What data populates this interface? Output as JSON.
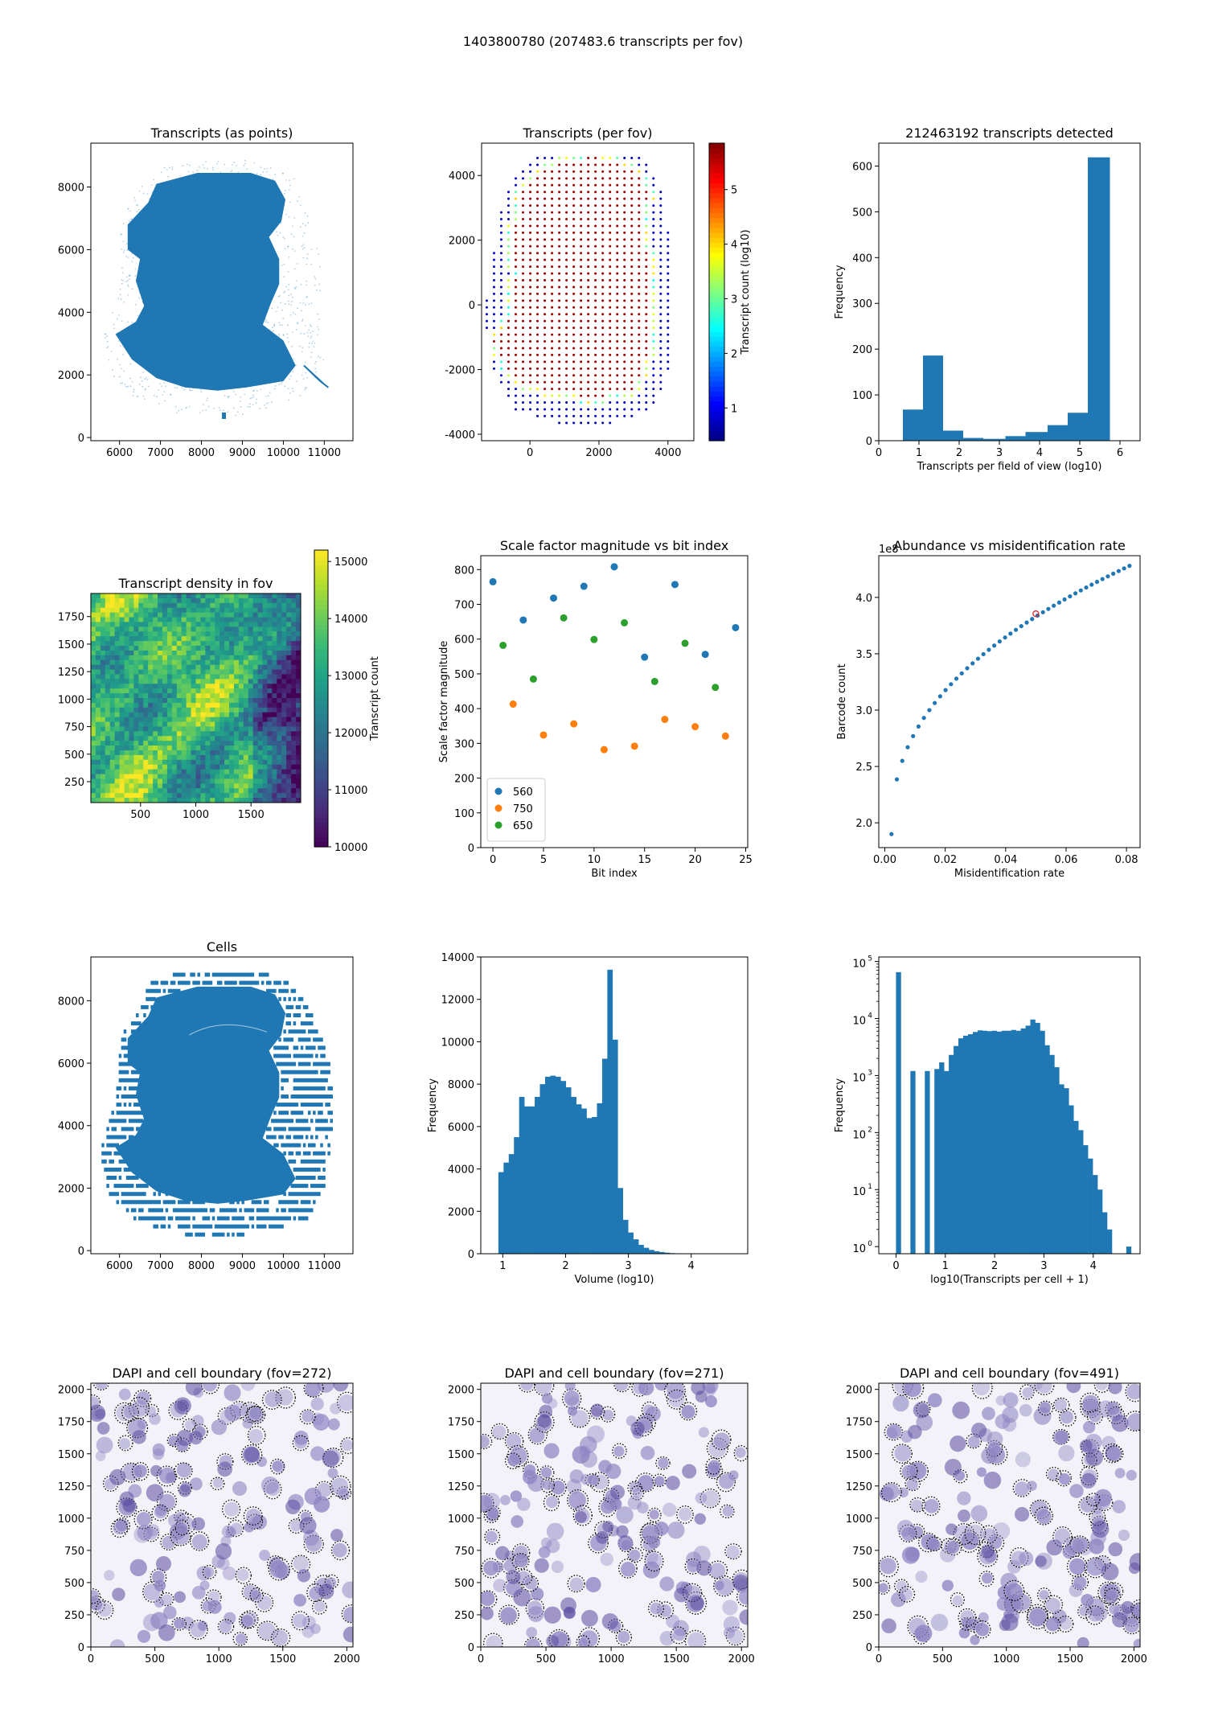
{
  "suptitle": "1403800780 (207483.6 transcripts per fov)",
  "colors": {
    "blue": "#1f77b4",
    "orange": "#ff7f0e",
    "green": "#2ca02c",
    "red": "#d62728"
  },
  "chart_data": [
    {
      "id": "p1",
      "type": "scatter",
      "title": "Transcripts (as points)",
      "xlim": [
        5300,
        11700
      ],
      "ylim": [
        -100,
        9400
      ],
      "xticks": [
        6000,
        7000,
        8000,
        9000,
        10000,
        11000
      ],
      "yticks": [
        0,
        2000,
        4000,
        6000,
        8000
      ],
      "description_points": "dense point cloud of brain-section outline",
      "outline": [
        [
          6900,
          8100
        ],
        [
          7900,
          8450
        ],
        [
          9200,
          8450
        ],
        [
          9800,
          8200
        ],
        [
          10050,
          7600
        ],
        [
          9950,
          6900
        ],
        [
          9650,
          6400
        ],
        [
          9900,
          5700
        ],
        [
          9900,
          4900
        ],
        [
          9700,
          4300
        ],
        [
          9500,
          3600
        ],
        [
          10000,
          3100
        ],
        [
          10300,
          2300
        ],
        [
          10000,
          1800
        ],
        [
          9100,
          1600
        ],
        [
          8400,
          1500
        ],
        [
          7600,
          1600
        ],
        [
          6900,
          1900
        ],
        [
          6300,
          2500
        ],
        [
          5900,
          3300
        ],
        [
          6400,
          3700
        ],
        [
          6600,
          4200
        ],
        [
          6400,
          5000
        ],
        [
          6500,
          5700
        ],
        [
          6200,
          6000
        ],
        [
          6200,
          6800
        ],
        [
          6700,
          7500
        ]
      ],
      "halo": [
        [
          6700,
          8500
        ],
        [
          8000,
          8900
        ],
        [
          9300,
          8900
        ],
        [
          10300,
          8400
        ],
        [
          10500,
          7400
        ],
        [
          10900,
          6000
        ],
        [
          10900,
          4000
        ],
        [
          11000,
          2400
        ],
        [
          10500,
          1300
        ],
        [
          9000,
          700
        ],
        [
          7400,
          700
        ],
        [
          6300,
          1300
        ],
        [
          5700,
          2200
        ],
        [
          5600,
          3500
        ],
        [
          6000,
          5200
        ],
        [
          6000,
          6800
        ]
      ],
      "tail": [
        [
          10500,
          2300
        ],
        [
          11000,
          1700
        ],
        [
          11100,
          1600
        ],
        [
          10900,
          1800
        ]
      ]
    },
    {
      "id": "p2",
      "type": "scatter",
      "title": "Transcripts (per fov)",
      "xlim": [
        -1400,
        4750
      ],
      "ylim": [
        -4200,
        5000
      ],
      "xticks": [
        0,
        2000,
        4000
      ],
      "yticks": [
        -4000,
        -2000,
        0,
        2000,
        4000
      ],
      "colorbar": {
        "label": "Transcript count (log10)",
        "ticks": [
          1,
          2,
          3,
          4,
          5
        ],
        "range": [
          0.4,
          5.85
        ],
        "colormap": "jet"
      },
      "grid_step": 210,
      "tissue_outline": [
        [
          300,
          4200
        ],
        [
          1800,
          4600
        ],
        [
          3100,
          4200
        ],
        [
          3400,
          3500
        ],
        [
          3300,
          2300
        ],
        [
          3450,
          1000
        ],
        [
          3400,
          -300
        ],
        [
          3500,
          -1400
        ],
        [
          3000,
          -2600
        ],
        [
          2000,
          -2900
        ],
        [
          500,
          -2700
        ],
        [
          -500,
          -2300
        ],
        [
          -1100,
          -1200
        ],
        [
          -600,
          -300
        ],
        [
          -400,
          1000
        ],
        [
          -500,
          2200
        ],
        [
          -200,
          3500
        ]
      ],
      "grid_outline": [
        [
          200,
          4650
        ],
        [
          1800,
          5000
        ],
        [
          3300,
          4600
        ],
        [
          3800,
          3600
        ],
        [
          4050,
          2000
        ],
        [
          4200,
          0
        ],
        [
          4100,
          -1800
        ],
        [
          3600,
          -3200
        ],
        [
          2300,
          -3700
        ],
        [
          800,
          -3700
        ],
        [
          -400,
          -3300
        ],
        [
          -1200,
          -1800
        ],
        [
          -1300,
          0
        ],
        [
          -1000,
          2000
        ],
        [
          -700,
          3600
        ]
      ]
    },
    {
      "id": "p3",
      "type": "bar",
      "title": "212463192 transcripts detected",
      "xlabel": "Transcripts per field of view (log10)",
      "ylabel": "Frequency",
      "xlim": [
        0,
        6.5
      ],
      "ylim": [
        0,
        650
      ],
      "xticks": [
        0,
        1,
        2,
        3,
        4,
        5,
        6
      ],
      "yticks": [
        0,
        100,
        200,
        300,
        400,
        500,
        600
      ],
      "bin_edges": [
        0.6,
        1.1,
        1.6,
        2.1,
        2.6,
        3.15,
        3.65,
        4.2,
        4.7,
        5.2,
        5.75
      ],
      "values": [
        68,
        186,
        22,
        6,
        4,
        10,
        19,
        34,
        61,
        619
      ]
    },
    {
      "id": "p4",
      "type": "heatmap",
      "title": "Transcript density in fov",
      "xlim": [
        50,
        1950
      ],
      "ylim": [
        60,
        1960
      ],
      "xticks": [
        500,
        1000,
        1500
      ],
      "yticks": [
        250,
        500,
        750,
        1000,
        1250,
        1500,
        1750
      ],
      "colorbar": {
        "label": "Transcript count",
        "ticks": [
          10000,
          11000,
          12000,
          13000,
          14000,
          15000
        ],
        "range": [
          10000,
          15200
        ],
        "colormap": "viridis"
      }
    },
    {
      "id": "p5",
      "type": "scatter",
      "title": "Scale factor magnitude vs bit index",
      "xlabel": "Bit index",
      "ylabel": "Scale factor magnitude",
      "xlim": [
        -1.2,
        25.2
      ],
      "ylim": [
        0,
        840
      ],
      "xticks": [
        0,
        5,
        10,
        15,
        20,
        25
      ],
      "yticks": [
        0,
        100,
        200,
        300,
        400,
        500,
        600,
        700,
        800
      ],
      "legend_position": "lower-left",
      "series": [
        {
          "name": "560",
          "x": [
            0,
            3,
            6,
            9,
            12,
            15,
            18,
            21,
            24
          ],
          "y": [
            765,
            655,
            718,
            752,
            808,
            548,
            757,
            556,
            633
          ]
        },
        {
          "name": "750",
          "x": [
            2,
            5,
            8,
            11,
            14,
            17,
            20,
            23
          ],
          "y": [
            413,
            324,
            356,
            282,
            292,
            369,
            348,
            321
          ]
        },
        {
          "name": "650",
          "x": [
            1,
            4,
            7,
            10,
            13,
            16,
            19,
            22
          ],
          "y": [
            582,
            485,
            661,
            599,
            647,
            478,
            588,
            461
          ]
        }
      ]
    },
    {
      "id": "p6",
      "type": "scatter",
      "title": "Abundance vs misidentification rate",
      "xlabel": "Misidentification rate",
      "ylabel": "Barcode count",
      "ylabel_scale": "1e8",
      "xlim": [
        -0.002,
        0.0845
      ],
      "ylim": [
        1.78,
        4.37
      ],
      "xticks": [
        0.0,
        0.02,
        0.04,
        0.06,
        0.08
      ],
      "yticks": [
        2.0,
        2.5,
        3.0,
        3.5,
        4.0
      ],
      "curve_start": 0.0022,
      "curve_end": 0.081,
      "curve_points": 45,
      "curve_model": "y = 1.9 + 2.38 * ((x - 0.0022)/0.0788)^0.42",
      "highlight": {
        "x": 0.05,
        "y": 3.855
      }
    },
    {
      "id": "p7",
      "type": "scatter",
      "title": "Cells",
      "xlim": [
        5300,
        11700
      ],
      "ylim": [
        -100,
        9400
      ],
      "xticks": [
        6000,
        7000,
        8000,
        9000,
        10000,
        11000
      ],
      "yticks": [
        0,
        2000,
        4000,
        6000,
        8000
      ]
    },
    {
      "id": "p8",
      "type": "bar",
      "title": "",
      "xlabel": "Volume (log10)",
      "ylabel": "Frequency",
      "xlim": [
        0.65,
        4.9
      ],
      "ylim": [
        0,
        14000
      ],
      "xticks": [
        1,
        2,
        3,
        4
      ],
      "yticks": [
        0,
        2000,
        4000,
        6000,
        8000,
        10000,
        12000,
        14000
      ],
      "bin_start": 0.93,
      "bin_width": 0.0826,
      "values": [
        3850,
        4300,
        4700,
        5500,
        7400,
        6950,
        6950,
        7400,
        8000,
        8350,
        8400,
        8350,
        8150,
        7850,
        7400,
        7050,
        6850,
        6400,
        6450,
        7100,
        9200,
        13400,
        10100,
        3100,
        1600,
        1000,
        680,
        420,
        280,
        180,
        120,
        80,
        50,
        30,
        20,
        12,
        8,
        5,
        3,
        2,
        1,
        1,
        1,
        1,
        1
      ]
    },
    {
      "id": "p9",
      "type": "bar",
      "title": "",
      "xlabel": "log10(Transcripts per cell + 1)",
      "ylabel": "Frequency",
      "yscale": "log",
      "xlim": [
        -0.35,
        4.95
      ],
      "ylim": [
        0.75,
        120000
      ],
      "xticks": [
        0,
        1,
        2,
        3,
        4
      ],
      "yticks": [
        1,
        10,
        100,
        1000,
        10000,
        100000
      ],
      "ytick_labels": [
        "10",
        "10",
        "10",
        "10",
        "10",
        "10"
      ],
      "ytick_exponents": [
        "0",
        "1",
        "2",
        "3",
        "4",
        "5"
      ],
      "bin_start": 0,
      "bin_width": 0.0973,
      "values": [
        65000,
        0,
        0,
        1200,
        0,
        0,
        1200,
        0,
        1300,
        1700,
        1200,
        2300,
        3300,
        4500,
        5000,
        5300,
        5800,
        6200,
        6100,
        6000,
        6100,
        5900,
        6100,
        6100,
        6300,
        6100,
        6700,
        7500,
        9600,
        8400,
        6100,
        3400,
        2300,
        1400,
        700,
        600,
        300,
        160,
        110,
        60,
        35,
        18,
        10,
        4,
        2,
        0,
        0,
        0,
        1
      ]
    },
    {
      "id": "p10",
      "type": "image",
      "title": "DAPI and cell boundary (fov=272)",
      "xlim": [
        0,
        2048
      ],
      "ylim": [
        0,
        2048
      ],
      "xticks": [
        0,
        500,
        1000,
        1500,
        2000
      ],
      "yticks": [
        0,
        250,
        500,
        750,
        1000,
        1250,
        1500,
        1750,
        2000
      ]
    },
    {
      "id": "p11",
      "type": "image",
      "title": "DAPI and cell boundary (fov=271)",
      "xlim": [
        0,
        2048
      ],
      "ylim": [
        0,
        2048
      ],
      "xticks": [
        0,
        500,
        1000,
        1500,
        2000
      ],
      "yticks": [
        0,
        250,
        500,
        750,
        1000,
        1250,
        1500,
        1750,
        2000
      ]
    },
    {
      "id": "p12",
      "type": "image",
      "title": "DAPI and cell boundary (fov=491)",
      "xlim": [
        0,
        2048
      ],
      "ylim": [
        0,
        2048
      ],
      "xticks": [
        0,
        500,
        1000,
        1500,
        2000
      ],
      "yticks": [
        0,
        250,
        500,
        750,
        1000,
        1250,
        1500,
        1750,
        2000
      ]
    }
  ]
}
